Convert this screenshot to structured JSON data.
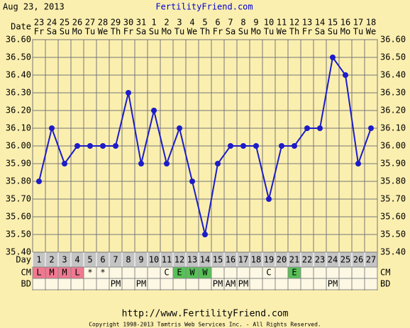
{
  "chart_data": {
    "type": "line",
    "date": "Aug 23, 2013",
    "title": "FertilityFriend.com",
    "date_label": "Date",
    "dates": [
      "23",
      "24",
      "25",
      "26",
      "27",
      "28",
      "29",
      "30",
      "31",
      "1",
      "2",
      "3",
      "4",
      "5",
      "6",
      "7",
      "8",
      "9",
      "10",
      "11",
      "12",
      "13",
      "14",
      "15",
      "16",
      "17",
      "18"
    ],
    "weekdays": [
      "Fr",
      "Sa",
      "Su",
      "Mo",
      "Tu",
      "We",
      "Th",
      "Fr",
      "Sa",
      "Su",
      "Mo",
      "Tu",
      "We",
      "Th",
      "Fr",
      "Sa",
      "Su",
      "Mo",
      "Tu",
      "We",
      "Th",
      "Fr",
      "Sa",
      "Su",
      "Mo",
      "Tu",
      "We"
    ],
    "day_label": "Day",
    "categories": [
      "1",
      "2",
      "3",
      "4",
      "5",
      "6",
      "7",
      "8",
      "9",
      "10",
      "11",
      "12",
      "13",
      "14",
      "15",
      "16",
      "17",
      "18",
      "19",
      "20",
      "21",
      "22",
      "23",
      "24",
      "25",
      "26",
      "27"
    ],
    "values": [
      35.8,
      36.1,
      35.9,
      36.0,
      36.0,
      36.0,
      36.0,
      36.3,
      35.9,
      36.2,
      35.9,
      36.1,
      35.8,
      35.5,
      35.9,
      36.0,
      36.0,
      36.0,
      35.7,
      36.0,
      36.0,
      36.1,
      36.1,
      36.5,
      36.4,
      35.9,
      36.1
    ],
    "color": "#1c1cc8",
    "ylim": [
      35.4,
      36.6
    ],
    "yticks": [
      {
        "value": 35.4,
        "label": "35.40"
      },
      {
        "value": 35.5,
        "label": "35.50"
      },
      {
        "value": 35.6,
        "label": "35.60"
      },
      {
        "value": 35.7,
        "label": "35.70"
      },
      {
        "value": 35.8,
        "label": "35.80"
      },
      {
        "value": 35.9,
        "label": "35.90"
      },
      {
        "value": 36.0,
        "label": "36.00"
      },
      {
        "value": 36.1,
        "label": "36.10"
      },
      {
        "value": 36.2,
        "label": "36.20"
      },
      {
        "value": 36.3,
        "label": "36.30"
      },
      {
        "value": 36.4,
        "label": "36.40"
      },
      {
        "value": 36.5,
        "label": "36.50"
      },
      {
        "value": 36.6,
        "label": "36.60"
      }
    ],
    "grid": true,
    "rows": [
      {
        "label": "CM",
        "values": [
          "L",
          "M",
          "M",
          "L",
          "*",
          "*",
          null,
          null,
          null,
          null,
          "C",
          "E",
          "W",
          "W",
          null,
          null,
          null,
          null,
          "C",
          null,
          "E",
          null,
          null,
          null,
          null,
          null,
          null
        ],
        "colors": {
          "L": "#f07890",
          "M": "#f07890",
          "E": "#58c058",
          "W": "#58c058"
        }
      },
      {
        "label": "BD",
        "values": [
          null,
          null,
          null,
          null,
          null,
          null,
          "PM",
          null,
          "PM",
          null,
          null,
          null,
          null,
          null,
          "PM",
          "AM",
          "PM",
          null,
          null,
          null,
          null,
          null,
          null,
          "PM",
          null,
          null,
          null
        ]
      }
    ],
    "url": "http://www.FertilityFriend.com",
    "copyright": "Copyright 1998-2013 Tamtris Web Services Inc. - All Rights Reserved."
  }
}
